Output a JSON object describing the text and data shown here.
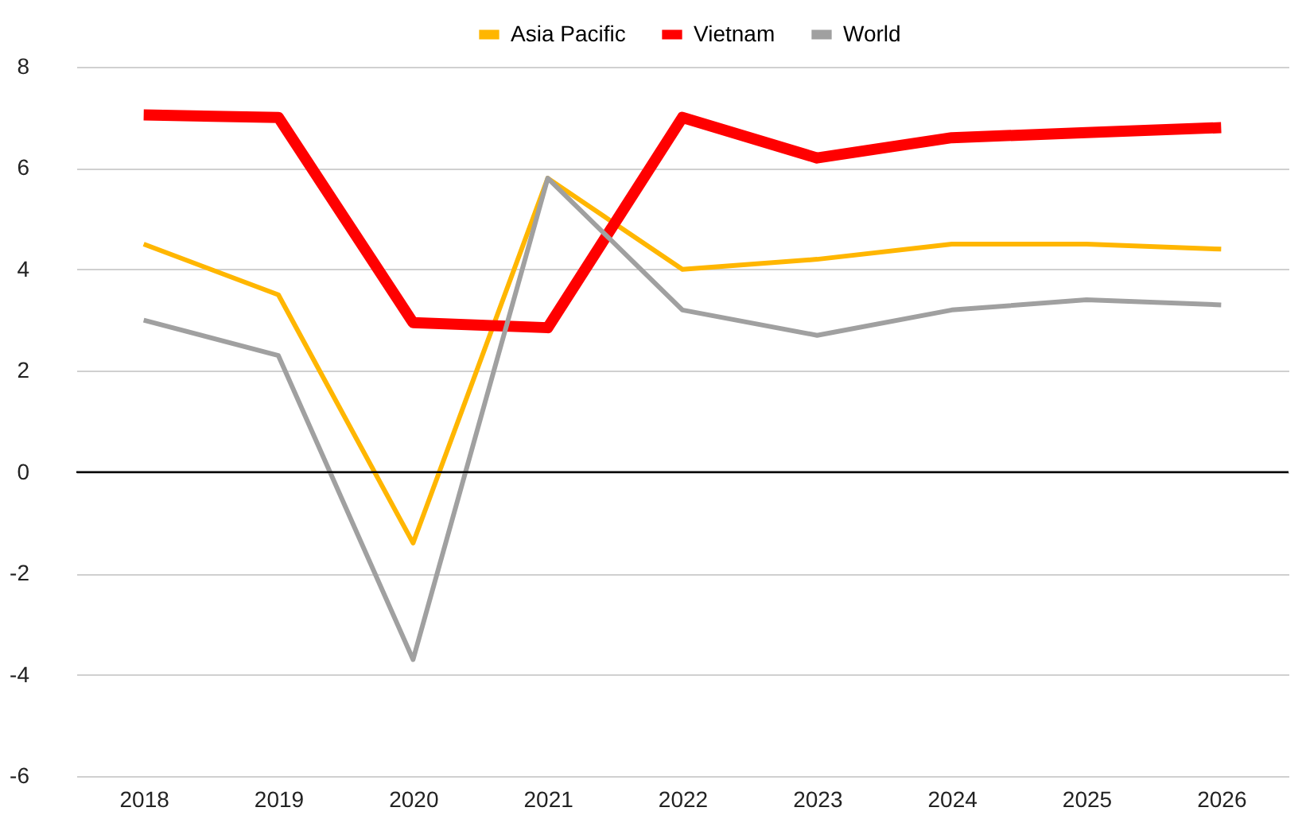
{
  "chart_data": {
    "type": "line",
    "categories": [
      "2018",
      "2019",
      "2020",
      "2021",
      "2022",
      "2023",
      "2024",
      "2025",
      "2026"
    ],
    "series": [
      {
        "name": "Asia Pacific",
        "color": "#ffb600",
        "values": [
          4.5,
          3.5,
          -1.4,
          5.8,
          4.0,
          4.2,
          4.5,
          4.5,
          4.4
        ]
      },
      {
        "name": "Vietnam",
        "color": "#ff0000",
        "values": [
          7.05,
          7.0,
          2.95,
          2.85,
          7.0,
          6.2,
          6.6,
          6.7,
          6.8
        ]
      },
      {
        "name": "World",
        "color": "#a0a0a0",
        "values": [
          3.0,
          2.3,
          -3.7,
          5.8,
          3.2,
          2.7,
          3.2,
          3.4,
          3.3
        ]
      }
    ],
    "ylim": [
      -6,
      8
    ],
    "yticks": [
      -6,
      -4,
      -2,
      0,
      2,
      4,
      6,
      8
    ],
    "grid": "y",
    "legend": "top",
    "marker": "none",
    "line_style": "solid",
    "ref_lines": [
      {
        "axis": "y",
        "value": 0,
        "color": "#000000"
      }
    ]
  }
}
